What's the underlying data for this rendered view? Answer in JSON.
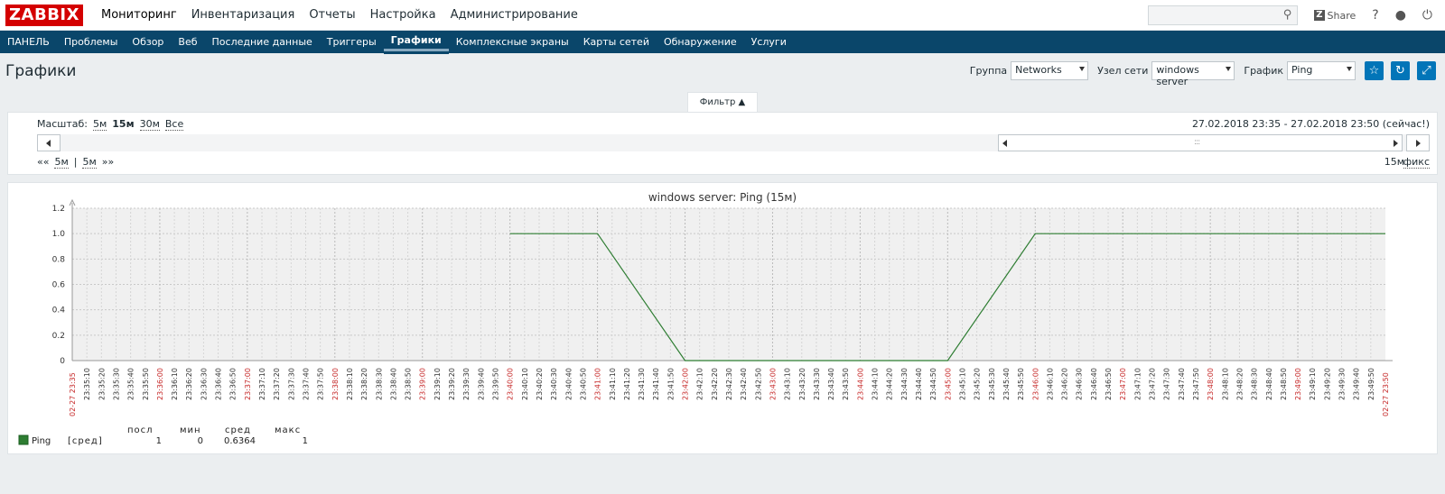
{
  "logo": "ZABBIX",
  "main_menu": [
    "Мониторинг",
    "Инвентаризация",
    "Отчеты",
    "Настройка",
    "Администрирование"
  ],
  "header_right": {
    "share": "Share",
    "help": "?",
    "user": "user-icon",
    "logout": "power-icon"
  },
  "sub_menu": [
    "ПАНЕЛЬ",
    "Проблемы",
    "Обзор",
    "Веб",
    "Последние данные",
    "Триггеры",
    "Графики",
    "Комплексные экраны",
    "Карты сетей",
    "Обнаружение",
    "Услуги"
  ],
  "sub_menu_active": "Графики",
  "page": {
    "title": "Графики",
    "group_label": "Группа",
    "group_value": "Networks",
    "host_label": "Узел сети",
    "host_value": "windows server",
    "graph_label": "График",
    "graph_value": "Ping"
  },
  "filter": {
    "tab_label": "Фильтр ▲",
    "scale_label": "Масштаб:",
    "scale_options": [
      "5м",
      "15м",
      "30м",
      "Все"
    ],
    "scale_current": "15м",
    "range_text": "27.02.2018 23:35 - 27.02.2018 23:50 (сейчас!)",
    "nav_back": "««",
    "nav_5m_a": "5м",
    "nav_sep": "|",
    "nav_5m_b": "5м",
    "nav_fwd": "»»",
    "period": "15м",
    "fixed": "фикс",
    "grip": ":::"
  },
  "graph": {
    "title": "windows server: Ping (15м)",
    "legend_headers": [
      "посл",
      "мин",
      "сред",
      "макс"
    ],
    "legend_item": "Ping",
    "legend_func": "[сред]",
    "legend_values": [
      "1",
      "0",
      "0.6364",
      "1"
    ],
    "series_color": "#2e7d32",
    "start_label": "02-27 23:35",
    "end_label": "02-27 23:50"
  },
  "chart_data": {
    "type": "line",
    "title": "windows server: Ping (15м)",
    "ylim": [
      0,
      1.2
    ],
    "yticks": [
      "0",
      "0.2",
      "0.4",
      "0.6",
      "0.8",
      "1.0",
      "1.2"
    ],
    "x_start": "23:35:10",
    "x_end": "23:50:00",
    "series": [
      {
        "name": "Ping",
        "x": [
          "23:40:00",
          "23:41:00",
          "23:42:00",
          "23:45:00",
          "23:46:00",
          "23:50:00"
        ],
        "values": [
          1,
          1,
          0,
          0,
          1,
          1
        ]
      }
    ],
    "grid": true
  }
}
